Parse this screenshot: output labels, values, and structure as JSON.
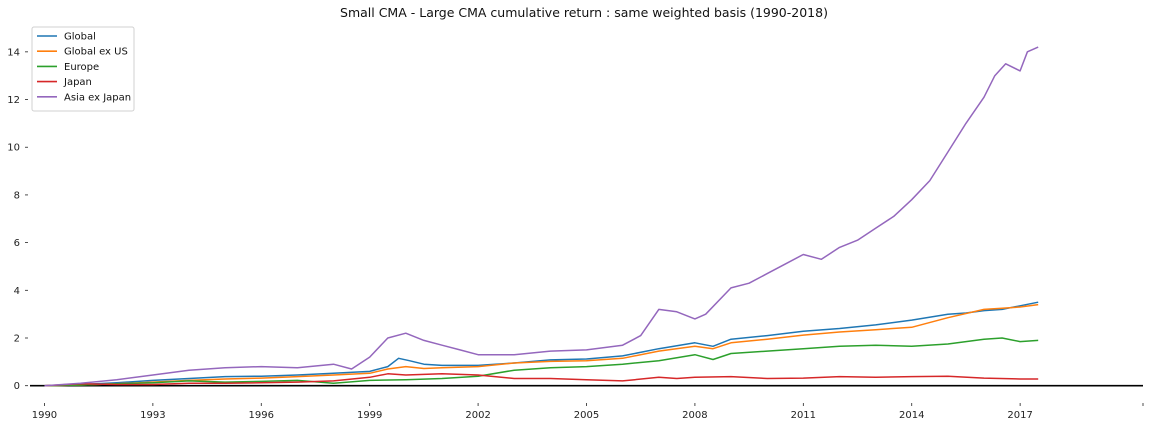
{
  "chart_data": {
    "type": "line",
    "title": "Small CMA - Large CMA cumulative return : same weighted basis (1990-2018)",
    "xlabel": "",
    "ylabel": "",
    "xlim": [
      1989.6,
      2020.4
    ],
    "ylim": [
      -0.6,
      15.0
    ],
    "x_ticks": [
      1990,
      1993,
      1996,
      1999,
      2002,
      2005,
      2008,
      2011,
      2014,
      2017
    ],
    "y_ticks": [
      0,
      2,
      4,
      6,
      8,
      10,
      12,
      14
    ],
    "grid": false,
    "legend": "top-left",
    "zero_line": true,
    "series": [
      {
        "name": "Global",
        "color": "#1f77b4",
        "x": [
          1990,
          1991,
          1992,
          1993,
          1994,
          1995,
          1996,
          1997,
          1998,
          1999,
          1999.5,
          1999.8,
          2000.1,
          2000.5,
          2001,
          2002,
          2003,
          2004,
          2005,
          2006,
          2007,
          2008,
          2008.5,
          2009,
          2010,
          2011,
          2012,
          2013,
          2014,
          2015,
          2015.5,
          2016,
          2016.5,
          2017,
          2017.5
        ],
        "y": [
          0,
          0.05,
          0.12,
          0.22,
          0.3,
          0.38,
          0.4,
          0.45,
          0.52,
          0.6,
          0.8,
          1.15,
          1.05,
          0.9,
          0.85,
          0.85,
          0.95,
          1.08,
          1.12,
          1.25,
          1.55,
          1.8,
          1.65,
          1.95,
          2.1,
          2.28,
          2.4,
          2.55,
          2.75,
          3.0,
          3.05,
          3.15,
          3.2,
          3.35,
          3.5
        ]
      },
      {
        "name": "Global ex US",
        "color": "#ff7f0e",
        "x": [
          1990,
          1991,
          1992,
          1993,
          1994,
          1995,
          1996,
          1997,
          1998,
          1999,
          1999.5,
          2000,
          2000.5,
          2001,
          2002,
          2003,
          2004,
          2005,
          2006,
          2007,
          2008,
          2008.5,
          2009,
          2010,
          2011,
          2012,
          2013,
          2014,
          2015,
          2016,
          2016.5,
          2017,
          2017.5
        ],
        "y": [
          0,
          0.03,
          0.08,
          0.15,
          0.22,
          0.28,
          0.32,
          0.38,
          0.45,
          0.52,
          0.7,
          0.8,
          0.72,
          0.75,
          0.8,
          0.95,
          1.02,
          1.05,
          1.15,
          1.45,
          1.65,
          1.55,
          1.8,
          1.95,
          2.12,
          2.25,
          2.35,
          2.45,
          2.85,
          3.2,
          3.25,
          3.3,
          3.4
        ]
      },
      {
        "name": "Europe",
        "color": "#2ca02c",
        "x": [
          1990,
          1991,
          1992,
          1993,
          1994,
          1995,
          1996,
          1997,
          1998,
          1999,
          2000,
          2001,
          2002,
          2003,
          2004,
          2005,
          2006,
          2007,
          2008,
          2008.5,
          2009,
          2010,
          2011,
          2012,
          2013,
          2014,
          2015,
          2016,
          2016.5,
          2017,
          2017.5
        ],
        "y": [
          0,
          0.03,
          0.08,
          0.12,
          0.2,
          0.15,
          0.18,
          0.22,
          0.1,
          0.22,
          0.25,
          0.3,
          0.4,
          0.65,
          0.75,
          0.8,
          0.9,
          1.05,
          1.3,
          1.1,
          1.35,
          1.45,
          1.55,
          1.65,
          1.7,
          1.65,
          1.75,
          1.95,
          2.0,
          1.85,
          1.9
        ]
      },
      {
        "name": "Japan",
        "color": "#d62728",
        "x": [
          1990,
          1991,
          1992,
          1993,
          1994,
          1995,
          1996,
          1997,
          1998,
          1999,
          1999.5,
          2000,
          2001,
          2002,
          2003,
          2004,
          2005,
          2006,
          2007,
          2007.5,
          2008,
          2009,
          2010,
          2011,
          2012,
          2013,
          2014,
          2015,
          2016,
          2017,
          2017.5
        ],
        "y": [
          0,
          0.08,
          0.05,
          0.05,
          0.1,
          0.1,
          0.12,
          0.15,
          0.2,
          0.35,
          0.5,
          0.45,
          0.5,
          0.45,
          0.3,
          0.3,
          0.25,
          0.2,
          0.35,
          0.3,
          0.35,
          0.38,
          0.3,
          0.32,
          0.38,
          0.35,
          0.38,
          0.4,
          0.32,
          0.28,
          0.28
        ]
      },
      {
        "name": "Asia ex Japan",
        "color": "#9467bd",
        "x": [
          1990,
          1991,
          1992,
          1993,
          1994,
          1995,
          1996,
          1997,
          1998,
          1998.5,
          1999,
          1999.5,
          2000,
          2000.5,
          2001,
          2001.5,
          2002,
          2003,
          2004,
          2005,
          2006,
          2006.5,
          2007,
          2007.5,
          2008,
          2008.3,
          2009,
          2009.5,
          2010,
          2010.5,
          2011,
          2011.5,
          2012,
          2012.5,
          2013,
          2013.5,
          2014,
          2014.5,
          2015,
          2015.5,
          2016,
          2016.3,
          2016.6,
          2017,
          2017.2,
          2017.5
        ],
        "y": [
          0,
          0.1,
          0.25,
          0.45,
          0.65,
          0.75,
          0.8,
          0.75,
          0.9,
          0.7,
          1.2,
          2.0,
          2.2,
          1.9,
          1.7,
          1.5,
          1.3,
          1.3,
          1.45,
          1.5,
          1.7,
          2.1,
          3.2,
          3.1,
          2.8,
          3.0,
          4.1,
          4.3,
          4.7,
          5.1,
          5.5,
          5.3,
          5.8,
          6.1,
          6.6,
          7.1,
          7.8,
          8.6,
          9.8,
          11.0,
          12.1,
          13.0,
          13.5,
          13.2,
          14.0,
          14.2
        ]
      }
    ]
  }
}
